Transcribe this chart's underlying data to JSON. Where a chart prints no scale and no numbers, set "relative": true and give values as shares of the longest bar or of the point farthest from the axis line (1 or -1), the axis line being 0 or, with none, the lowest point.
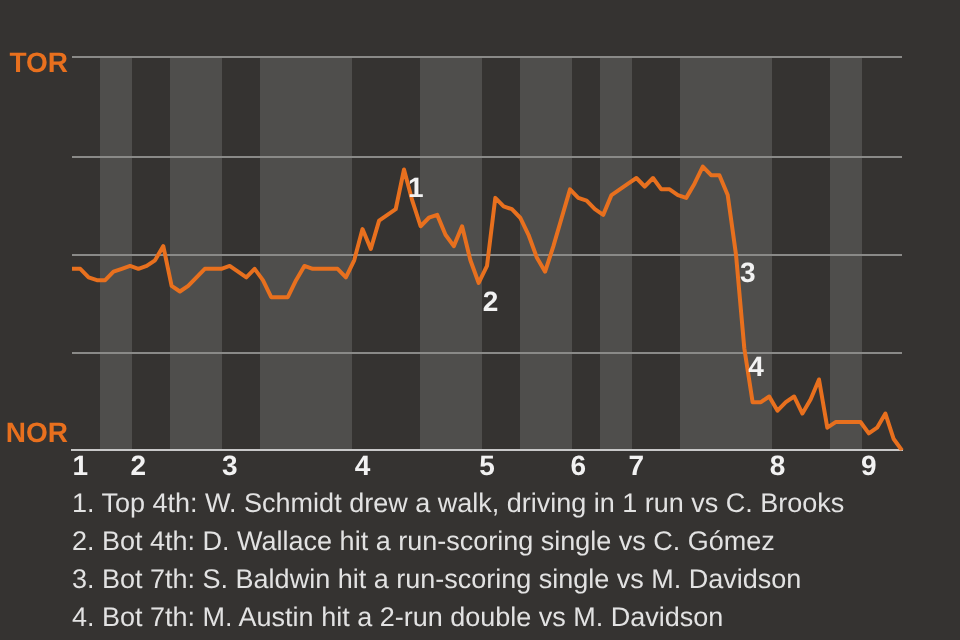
{
  "chart_data": {
    "type": "line",
    "relative": true,
    "categories": [
      null,
      "1",
      null,
      null,
      null,
      null,
      null,
      null,
      "2",
      null,
      null,
      null,
      null,
      null,
      null,
      null,
      null,
      null,
      null,
      "3",
      null,
      null,
      null,
      null,
      null,
      null,
      null,
      null,
      null,
      null,
      null,
      null,
      null,
      null,
      null,
      "4",
      null,
      null,
      null,
      null,
      null,
      null,
      null,
      null,
      null,
      null,
      null,
      null,
      null,
      null,
      "5",
      null,
      null,
      null,
      null,
      null,
      null,
      null,
      null,
      null,
      null,
      "6",
      null,
      null,
      null,
      null,
      null,
      null,
      "7",
      null,
      null,
      null,
      null,
      null,
      null,
      null,
      null,
      null,
      null,
      null,
      null,
      null,
      null,
      null,
      null,
      "8",
      null,
      null,
      null,
      null,
      null,
      null,
      null,
      null,
      null,
      null,
      "9",
      null,
      null,
      null,
      null
    ],
    "series": [
      {
        "color": "#e8701e",
        "values": [
          0.64,
          0.64,
          0.61,
          0.6,
          0.6,
          0.63,
          0.64,
          0.65,
          0.64,
          0.65,
          0.67,
          0.72,
          0.58,
          0.56,
          0.58,
          0.61,
          0.64,
          0.64,
          0.64,
          0.65,
          0.63,
          0.61,
          0.64,
          0.6,
          0.54,
          0.54,
          0.54,
          0.6,
          0.65,
          0.64,
          0.64,
          0.64,
          0.64,
          0.61,
          0.67,
          0.78,
          0.71,
          0.81,
          0.83,
          0.85,
          0.99,
          0.88,
          0.79,
          0.82,
          0.83,
          0.76,
          0.72,
          0.79,
          0.67,
          0.59,
          0.65,
          0.89,
          0.86,
          0.85,
          0.82,
          0.76,
          0.68,
          0.63,
          0.72,
          0.82,
          0.92,
          0.89,
          0.88,
          0.85,
          0.83,
          0.9,
          0.92,
          0.94,
          0.96,
          0.93,
          0.96,
          0.92,
          0.92,
          0.9,
          0.89,
          0.94,
          1,
          0.97,
          0.97,
          0.9,
          0.69,
          0.36,
          0.17,
          0.17,
          0.19,
          0.14,
          0.17,
          0.19,
          0.13,
          0.18,
          0.25,
          0.08,
          0.1,
          0.1,
          0.1,
          0.1,
          0.06,
          0.08,
          0.13,
          0.04,
          0
        ]
      }
    ],
    "ref_lines": [
      {
        "axis": "y",
        "value": 0.35,
        "color": "#8a8a88"
      },
      {
        "axis": "y",
        "value": 0.69,
        "color": "#8a8a88"
      },
      {
        "axis": "y",
        "value": 1.04,
        "color": "#8a8a88"
      }
    ],
    "marker": "none",
    "line_style": "solid",
    "annotations": [
      {
        "text": "1",
        "y": 0.99
      },
      {
        "text": "2",
        "y": 0.59
      },
      {
        "text": "3",
        "y": 0.69
      },
      {
        "text": "4",
        "y": 0.36
      },
      "TOR",
      "NOR",
      "1. Top 4th: W. Schmidt drew a walk, driving in 1 run vs C. Brooks",
      "2. Bot 4th: D. Wallace hit a run-scoring single vs C. Gómez",
      "3. Bot 7th: S. Baldwin hit a run-scoring single vs M. Davidson",
      "4. Bot 7th: M. Austin hit a 2-run double vs M. Davidson"
    ]
  }
}
